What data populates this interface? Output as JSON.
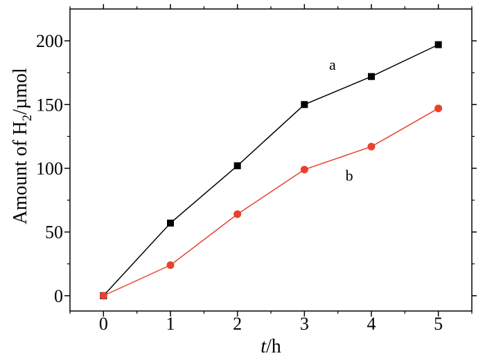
{
  "chart_data": {
    "type": "line",
    "title": "",
    "xlabel": {
      "italic": "t",
      "rest": "/h"
    },
    "ylabel": {
      "before": "Amount of H",
      "sub": "2",
      "after": "/µmol"
    },
    "x": [
      0,
      1,
      2,
      3,
      4,
      5
    ],
    "x_ticks": [
      "0",
      "1",
      "2",
      "3",
      "4",
      "5"
    ],
    "xlim": [
      -0.5,
      5.5
    ],
    "y_ticks": [
      "0",
      "50",
      "100",
      "150",
      "200"
    ],
    "y_tick_values": [
      0,
      50,
      100,
      150,
      200
    ],
    "ylim": [
      -12,
      225
    ],
    "grid": false,
    "series": [
      {
        "name": "a",
        "values": [
          0,
          57,
          102,
          150,
          172,
          197
        ],
        "color": "#000000",
        "marker": "square"
      },
      {
        "name": "b",
        "values": [
          0,
          24,
          64,
          99,
          117,
          147
        ],
        "color": "#e8412c",
        "marker": "circle"
      }
    ]
  }
}
